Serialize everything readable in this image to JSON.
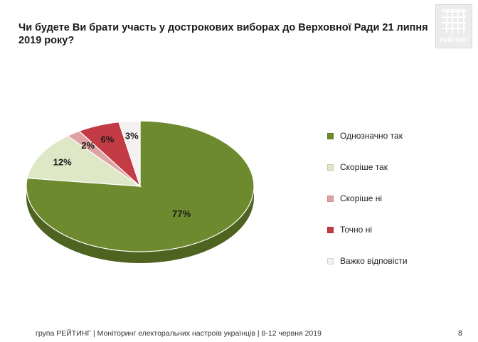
{
  "title": "Чи будете Ви брати участь у дострокових виборах до Верховної Ради 21 липня 2019 року?",
  "logo_text": "РЕЙТИНГ",
  "footer": "група РЕЙТИНГ | Моніторинг електоральних настроїв українців  | 8-12 червня 2019",
  "page_number": "8",
  "chart_data": {
    "type": "pie",
    "title": "Чи будете Ви брати участь у дострокових виборах до Верховної Ради 21 липня 2019 року?",
    "unit": "%",
    "legend_position": "right",
    "labels": [
      "Однозначно так",
      "Скоріше  так",
      "Скоріше  ні",
      "Точно ні",
      "Важко відповісти"
    ],
    "values": [
      77,
      12,
      2,
      6,
      3
    ],
    "data_labels": [
      "77%",
      "12%",
      "2%",
      "6%",
      "3%"
    ],
    "colors": [
      "#6e8a2e",
      "#dfe8c6",
      "#e0a3a3",
      "#c23b45",
      "#f4f1f1"
    ]
  }
}
